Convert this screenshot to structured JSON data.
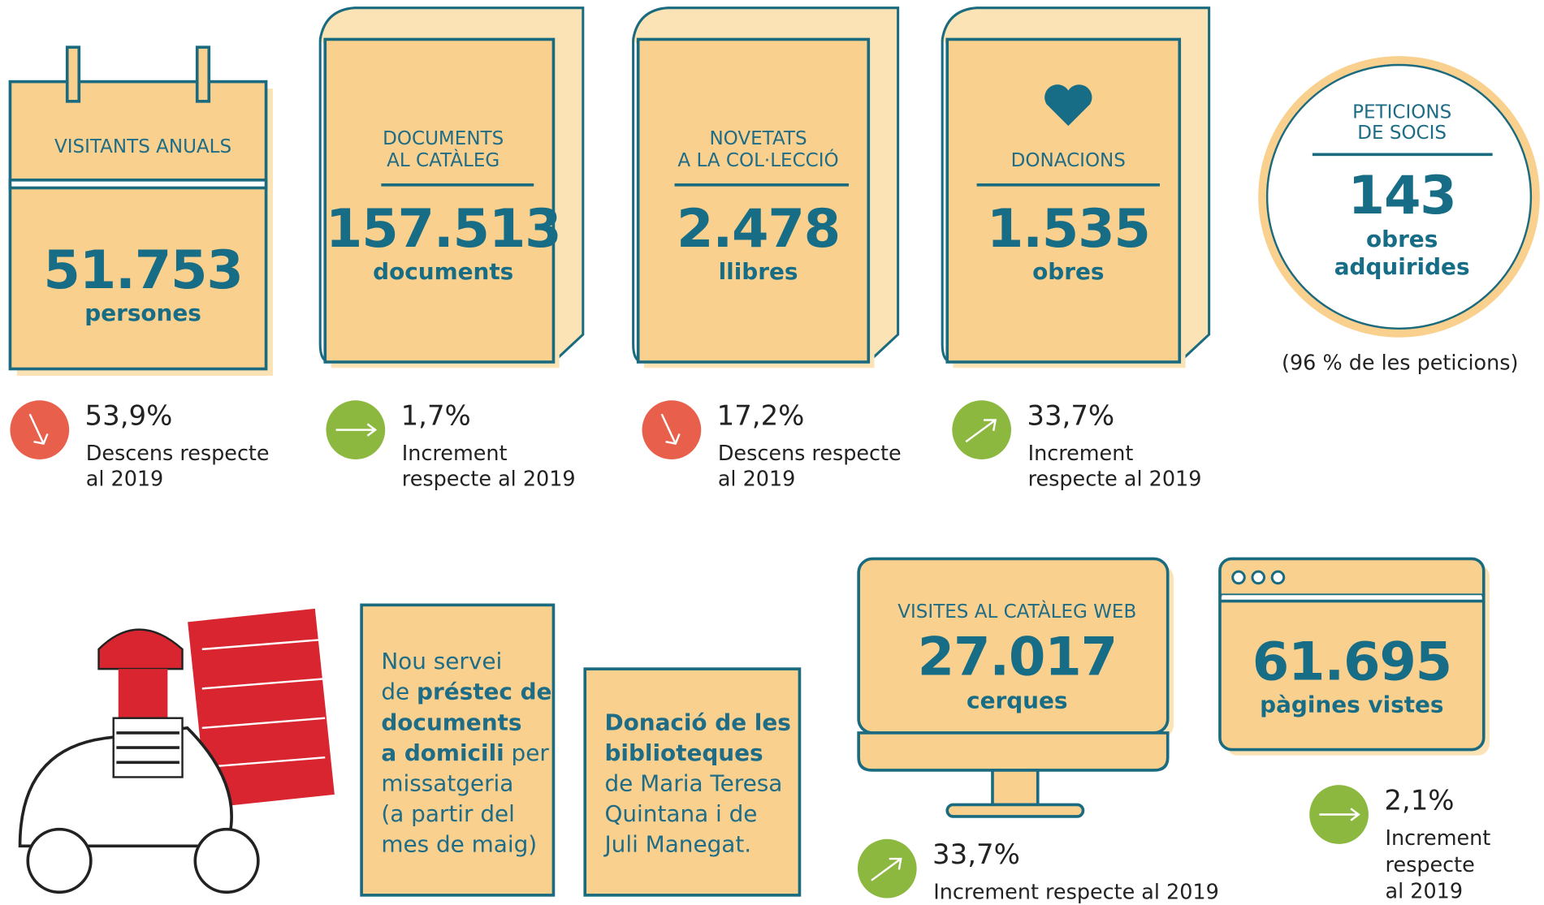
{
  "stats": [
    {
      "label": [
        "VISITANTS ANUALS"
      ],
      "value": "51.753",
      "unit": "persones",
      "change": "53,9%",
      "note": [
        "Descens respecte",
        "al 2019"
      ],
      "trend": "down"
    },
    {
      "label": [
        "DOCUMENTS",
        "AL CATÀLEG"
      ],
      "value": "157.513",
      "unit": "documents",
      "change": "1,7%",
      "note": [
        "Increment",
        "respecte al 2019"
      ],
      "trend": "flat"
    },
    {
      "label": [
        "NOVETATS",
        "A LA COL·LECCIÓ"
      ],
      "value": "2.478",
      "unit": "llibres",
      "change": "17,2%",
      "note": [
        "Descens respecte",
        "al 2019"
      ],
      "trend": "down"
    },
    {
      "label": [
        "DONACIONS"
      ],
      "value": "1.535",
      "unit": "obres",
      "change": "33,7%",
      "note": [
        "Increment",
        "respecte al 2019"
      ],
      "trend": "up"
    }
  ],
  "member_requests": {
    "label": [
      "PETICIONS",
      "DE SOCIS"
    ],
    "value": "143",
    "unit": [
      "obres",
      "adquirides"
    ],
    "note": "(96 % de les peticions)"
  },
  "notices": [
    {
      "lines": [
        [
          {
            "text": "Nou servei",
            "bold": false
          }
        ],
        [
          {
            "text": "de ",
            "bold": false
          },
          {
            "text": "préstec de",
            "bold": true
          }
        ],
        [
          {
            "text": "documents",
            "bold": true
          }
        ],
        [
          {
            "text": "a domicili",
            "bold": true
          },
          {
            "text": " per",
            "bold": false
          }
        ],
        [
          {
            "text": "missatgeria",
            "bold": false
          }
        ],
        [
          {
            "text": "(a partir del",
            "bold": false
          }
        ],
        [
          {
            "text": "mes de maig)",
            "bold": false
          }
        ]
      ]
    },
    {
      "lines": [
        [
          {
            "text": "Donació de les",
            "bold": true
          }
        ],
        [
          {
            "text": "biblioteques",
            "bold": true
          }
        ],
        [
          {
            "text": "de Maria Teresa",
            "bold": false
          }
        ],
        [
          {
            "text": "Quintana i de",
            "bold": false
          }
        ],
        [
          {
            "text": "Juli Manegat.",
            "bold": false
          }
        ]
      ]
    }
  ],
  "web": {
    "label": "VISITES AL CATÀLEG WEB",
    "value": "27.017",
    "unit": "cerques",
    "change": "33,7%",
    "note": [
      "Increment respecte al 2019"
    ],
    "trend": "up"
  },
  "pages": {
    "value": "61.695",
    "unit": "pàgines vistes",
    "change": "2,1%",
    "note": [
      "Increment",
      "respecte",
      "al 2019"
    ],
    "trend": "flat"
  }
}
